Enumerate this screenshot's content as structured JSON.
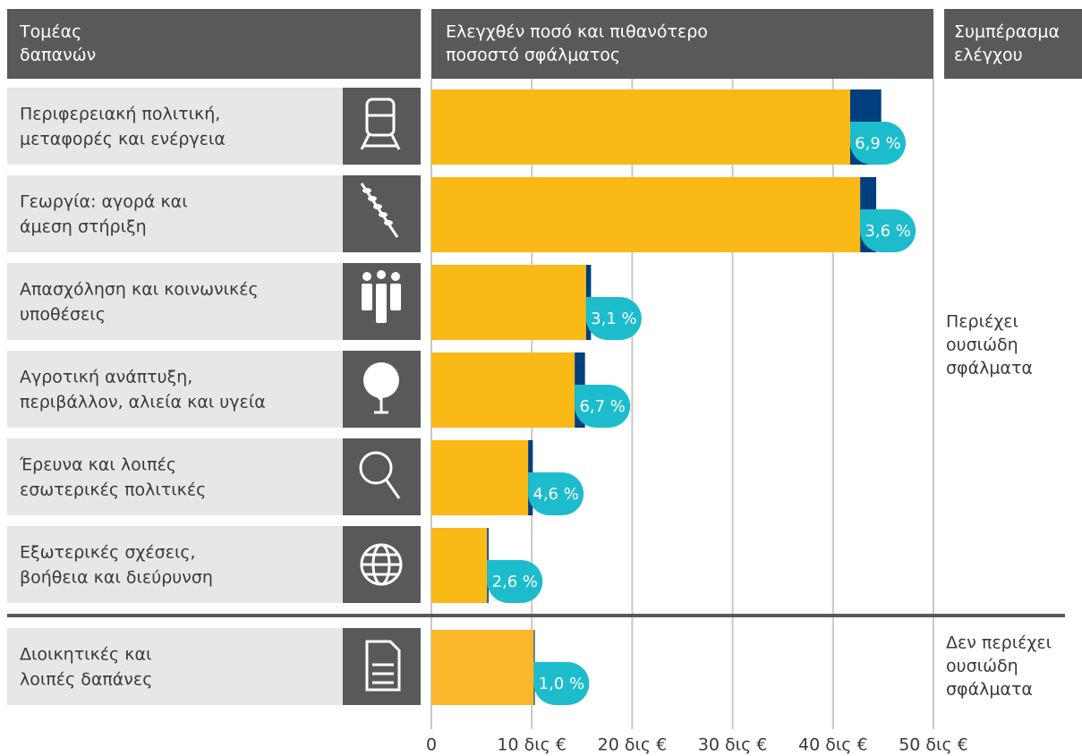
{
  "chart_data": {
    "type": "bar",
    "headers": {
      "sector": [
        "Τομέας",
        "δαπανών"
      ],
      "amount": [
        "Ελεγχθέν ποσό και πιθανότερο",
        "ποσοστό σφάλματος"
      ],
      "conclusion": [
        "Συμπέρασμα",
        "ελέγχου"
      ]
    },
    "color": "#fbb917",
    "error_color": "#003f7d",
    "badge_color": "#1cbccd",
    "xlim": [
      0,
      50
    ],
    "xticks": [
      0,
      {
        "value": 10,
        "label": "10 δις €"
      },
      {
        "value": 20,
        "label": "20 δις €"
      },
      {
        "value": 30,
        "label": "30 δις €"
      },
      {
        "value": 40,
        "label": "40 δις €"
      },
      {
        "value": 50,
        "label": "50 δις €"
      }
    ],
    "grid": true,
    "groups": [
      {
        "categories": [
          [
            "Περιφερειακή πολιτική,",
            "μεταφορές και ενέργεια"
          ],
          [
            "Γεωργία: αγορά και",
            "άμεση στήριξη"
          ],
          [
            "Απασχόληση και κοινωνικές",
            "υποθέσεις"
          ],
          [
            "Αγροτική ανάπτυξη,",
            "περιβάλλον, αλιεία και υγεία"
          ],
          [
            "Έρευνα και λοιπές",
            "εσωτερικές πολιτικές"
          ],
          [
            "Εξωτερικές σχέσεις,",
            "βοήθεια και διεύρυνση"
          ]
        ],
        "values": [
          44.8,
          44.3,
          15.9,
          15.3,
          10.1,
          5.7
        ],
        "error_rates": [
          6.9,
          3.6,
          3.1,
          6.7,
          4.6,
          2.6
        ],
        "error_value_labels": [
          "6,9 %",
          "3,6 %",
          "3,1 %",
          "6,7 %",
          "4,6 %",
          "2,6 %"
        ],
        "conclusion": [
          "Περιέχει",
          "ουσιώδη",
          "σφάλματα"
        ]
      },
      {
        "categories": [
          [
            "Διοικητικές και",
            "λοιπές δαπάνες"
          ]
        ],
        "values": [
          10.3
        ],
        "error_rates": [
          1.0
        ],
        "error_value_labels": [
          "1,0 %"
        ],
        "conclusion": [
          "Δεν περιέχει",
          "ουσιώδη",
          "σφάλματα"
        ],
        "color": "#fbb72b"
      }
    ]
  }
}
